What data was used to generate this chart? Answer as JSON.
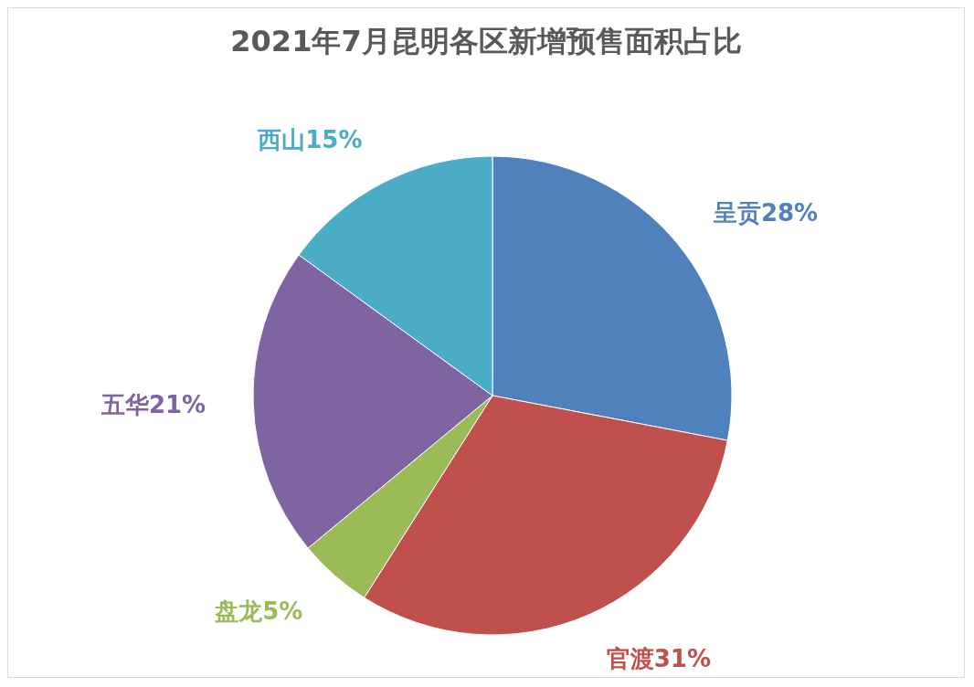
{
  "chart_data": {
    "type": "pie",
    "title": "2021年7月昆明各区新增预售面积占比",
    "categories": [
      "呈贡",
      "官渡",
      "盘龙",
      "五华",
      "西山"
    ],
    "values": [
      28,
      31,
      5,
      21,
      15
    ],
    "value_labels": [
      "28%",
      "31%",
      "5%",
      "21%",
      "15%"
    ],
    "colors": [
      "#4f81bd",
      "#c0504d",
      "#9bbb59",
      "#8064a2",
      "#4bacc6"
    ],
    "legend": false
  }
}
